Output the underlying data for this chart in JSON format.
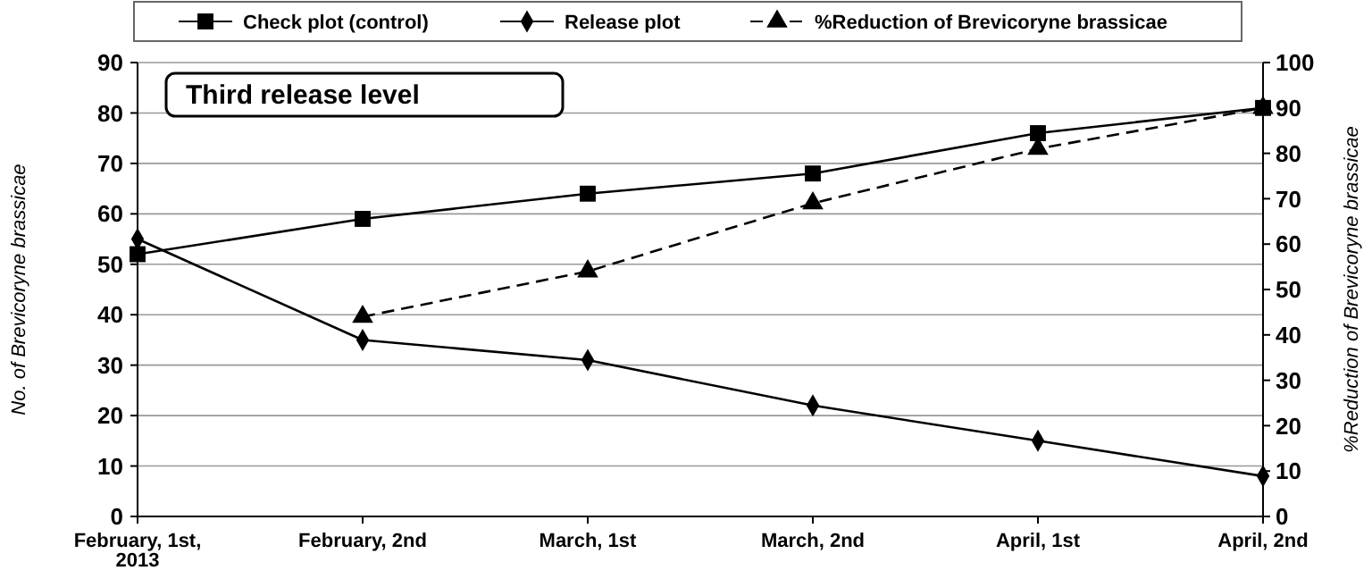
{
  "chart_data": {
    "type": "line",
    "categories": [
      "February, 1st,\n2013",
      "February, 2nd",
      "March, 1st",
      "March, 2nd",
      "April, 1st",
      "April, 2nd"
    ],
    "ylabel": "No. of Brevicoryne brassicae",
    "y2label": "%Reduction of Brevicoryne brassicae",
    "ylim": [
      0,
      90
    ],
    "yticks": [
      0,
      10,
      20,
      30,
      40,
      50,
      60,
      70,
      80,
      90
    ],
    "y2lim": [
      0,
      100
    ],
    "y2ticks": [
      0,
      10,
      20,
      30,
      40,
      50,
      60,
      70,
      80,
      90,
      100
    ],
    "grid": "y",
    "legend": "top",
    "annotations": [
      "Third release level"
    ],
    "series": [
      {
        "name": "Check plot (control)",
        "color": "#000000",
        "values": [
          52,
          59,
          64,
          68,
          76,
          81
        ],
        "marker": "square",
        "line_style": "solid"
      },
      {
        "name": "Release plot",
        "color": "#000000",
        "values": [
          55,
          35,
          31,
          22,
          15,
          8
        ],
        "marker": "diamond",
        "line_style": "solid"
      },
      {
        "name": "%Reduction of Brevicoryne brassicae",
        "color": "#000000",
        "values": [
          null,
          44,
          54,
          69,
          81,
          90
        ],
        "marker": "triangle",
        "line_style": "dashed",
        "axis": "y2"
      }
    ]
  }
}
